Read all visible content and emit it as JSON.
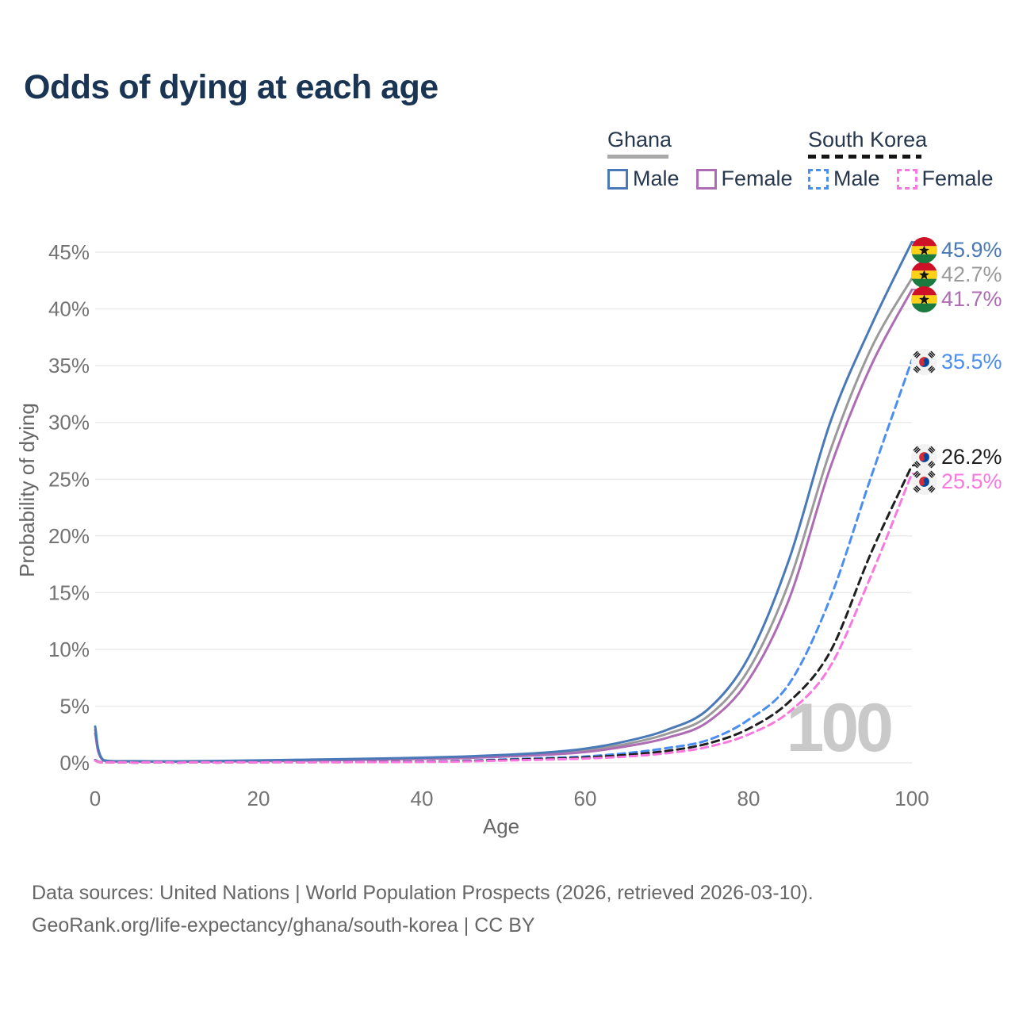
{
  "title": "Odds of dying at each age",
  "legend": {
    "groups": [
      {
        "id": "ghana",
        "label": "Ghana",
        "line_style": "solid",
        "key_color": "#a8a8a8",
        "items": [
          {
            "label": "Male",
            "color": "#4a79b8",
            "style": "solid"
          },
          {
            "label": "Female",
            "color": "#ad6cb3",
            "style": "solid"
          }
        ]
      },
      {
        "id": "south-korea",
        "label": "South Korea",
        "line_style": "dashed",
        "key_color": "#151515",
        "items": [
          {
            "label": "Male",
            "color": "#4b8ef2",
            "style": "dashed"
          },
          {
            "label": "Female",
            "color": "#fb77e0",
            "style": "dashed"
          }
        ]
      }
    ]
  },
  "watermark_age": "100",
  "footer": {
    "line1": "Data sources: United Nations | World Population Prospects (2026, retrieved 2026-03-10).",
    "line2": "GeoRank.org/life-expectancy/ghana/south-korea | CC BY"
  },
  "chart_data": {
    "type": "line",
    "title": "Odds of dying at each age",
    "xlabel": "Age",
    "ylabel": "Probability of dying",
    "x_ticks": [
      0,
      20,
      40,
      60,
      80,
      100
    ],
    "y_ticks": [
      0,
      5,
      10,
      15,
      20,
      25,
      30,
      35,
      40,
      45
    ],
    "y_tick_suffix": "%",
    "xlim": [
      0,
      100
    ],
    "ylim": [
      0,
      46
    ],
    "grid": "horizontal",
    "legend_position": "top-right",
    "ages": [
      0,
      1,
      5,
      10,
      15,
      20,
      25,
      30,
      35,
      40,
      45,
      50,
      55,
      60,
      65,
      70,
      75,
      80,
      85,
      90,
      95,
      100
    ],
    "series": [
      {
        "id": "ghana_all",
        "name": "Ghana (all)",
        "color": "#9a9a9a",
        "dash": "solid",
        "flag": "ghana",
        "end_label": "42.7%",
        "values": [
          2.9,
          0.22,
          0.13,
          0.11,
          0.14,
          0.18,
          0.23,
          0.28,
          0.33,
          0.4,
          0.48,
          0.62,
          0.8,
          1.1,
          1.65,
          2.55,
          4.1,
          8.2,
          16.0,
          27.5,
          36.5,
          42.7
        ]
      },
      {
        "id": "ghana_female",
        "name": "Ghana Female",
        "color": "#ad6cb3",
        "dash": "solid",
        "flag": "ghana",
        "end_label": "41.7%",
        "values": [
          2.6,
          0.2,
          0.12,
          0.1,
          0.12,
          0.15,
          0.19,
          0.24,
          0.29,
          0.35,
          0.42,
          0.55,
          0.7,
          0.95,
          1.45,
          2.2,
          3.6,
          7.3,
          14.5,
          26.0,
          35.0,
          41.7
        ]
      },
      {
        "id": "ghana_male",
        "name": "Ghana Male",
        "color": "#4a79b8",
        "dash": "solid",
        "flag": "ghana",
        "end_label": "45.9%",
        "values": [
          3.2,
          0.25,
          0.15,
          0.13,
          0.17,
          0.22,
          0.27,
          0.32,
          0.38,
          0.45,
          0.55,
          0.7,
          0.9,
          1.25,
          1.9,
          2.9,
          4.7,
          9.3,
          18.0,
          30.0,
          38.5,
          45.9
        ]
      },
      {
        "id": "korea_male",
        "name": "South Korea Male",
        "color": "#4b8ef2",
        "dash": "dashed",
        "flag": "korea",
        "end_label": "35.5%",
        "values": [
          0.25,
          0.03,
          0.01,
          0.01,
          0.03,
          0.05,
          0.06,
          0.07,
          0.09,
          0.12,
          0.18,
          0.3,
          0.42,
          0.56,
          0.85,
          1.3,
          2.0,
          3.8,
          7.0,
          14.5,
          25.2,
          35.5
        ]
      },
      {
        "id": "korea_all",
        "name": "South Korea (all)",
        "color": "#1f1f1f",
        "dash": "dashed",
        "flag": "korea",
        "end_label": "26.2%",
        "values": [
          0.22,
          0.02,
          0.01,
          0.01,
          0.02,
          0.04,
          0.05,
          0.06,
          0.08,
          0.1,
          0.15,
          0.25,
          0.35,
          0.47,
          0.7,
          1.05,
          1.7,
          3.0,
          5.4,
          9.8,
          18.5,
          26.2
        ]
      },
      {
        "id": "korea_female",
        "name": "South Korea Female",
        "color": "#fb77e0",
        "dash": "dashed",
        "flag": "korea",
        "end_label": "25.5%",
        "values": [
          0.2,
          0.02,
          0.01,
          0.01,
          0.02,
          0.03,
          0.04,
          0.05,
          0.06,
          0.08,
          0.12,
          0.2,
          0.28,
          0.38,
          0.55,
          0.85,
          1.4,
          2.5,
          4.5,
          8.5,
          16.5,
          25.5
        ]
      }
    ]
  }
}
